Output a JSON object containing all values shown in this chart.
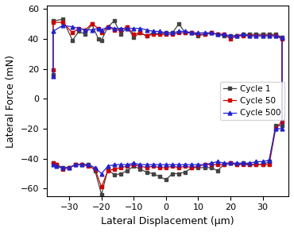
{
  "title": "",
  "xlabel": "Lateral Displacement (μm)",
  "ylabel": "Lateral Force (mN)",
  "xlim": [
    -37,
    38
  ],
  "ylim": [
    -65,
    62
  ],
  "xticks": [
    -30,
    -20,
    -10,
    0,
    10,
    20,
    30
  ],
  "yticks": [
    -60,
    -40,
    -20,
    0,
    20,
    40,
    60
  ],
  "legend_labels": [
    "Cycle 1",
    "Cycle 50",
    "Cycle 500"
  ],
  "legend_colors": [
    "#444444",
    "#cc0000",
    "#2222cc"
  ],
  "cycle1_x": [
    -35,
    -35,
    -32,
    -29,
    -27,
    -25,
    -23,
    -21,
    -20,
    -18,
    -16,
    -14,
    -12,
    -10,
    -8,
    -6,
    -4,
    -2,
    0,
    2,
    4,
    6,
    8,
    10,
    12,
    14,
    16,
    18,
    20,
    22,
    24,
    26,
    28,
    30,
    32,
    34,
    36,
    36,
    34,
    32,
    30,
    28,
    26,
    24,
    22,
    20,
    18,
    16,
    14,
    12,
    10,
    8,
    6,
    4,
    2,
    0,
    -2,
    -4,
    -6,
    -8,
    -10,
    -12,
    -14,
    -16,
    -18,
    -20,
    -22,
    -24,
    -26,
    -28,
    -30,
    -32,
    -34,
    -35
  ],
  "cycle1_y_top": [
    16,
    52,
    53,
    39,
    45,
    43,
    50,
    40,
    39,
    48,
    52,
    43,
    48,
    41,
    44,
    42,
    44,
    43,
    44,
    44,
    50,
    44,
    44,
    42,
    43,
    44,
    43,
    42,
    42,
    42,
    43,
    43,
    43,
    43,
    43,
    43,
    41,
    -18,
    -18,
    -42,
    -44,
    -44,
    -44,
    -43,
    -44,
    -43,
    -44,
    -48,
    -46,
    -46,
    -46,
    -46,
    -49,
    -50,
    -50,
    -54,
    -52,
    -50,
    -49,
    -47,
    -45,
    -48,
    -50,
    -51,
    -47,
    -64,
    -48,
    -44,
    -44,
    -44,
    -46,
    -46,
    -44,
    -43
  ],
  "cycle50_x": [
    -35,
    -35,
    -32,
    -29,
    -27,
    -25,
    -23,
    -21,
    -20,
    -18,
    -16,
    -14,
    -12,
    -10,
    -8,
    -6,
    -4,
    -2,
    0,
    2,
    4,
    6,
    8,
    10,
    12,
    14,
    16,
    18,
    20,
    22,
    24,
    26,
    28,
    30,
    32,
    34,
    36,
    36,
    34,
    32,
    30,
    28,
    26,
    24,
    22,
    20,
    18,
    16,
    14,
    12,
    10,
    8,
    6,
    4,
    2,
    0,
    -2,
    -4,
    -6,
    -8,
    -10,
    -12,
    -14,
    -16,
    -18,
    -20,
    -22,
    -24,
    -26,
    -28,
    -30,
    -32,
    -34,
    -35
  ],
  "cycle50_y_top": [
    19,
    51,
    51,
    44,
    47,
    46,
    50,
    47,
    44,
    48,
    46,
    46,
    48,
    43,
    44,
    42,
    43,
    43,
    43,
    43,
    44,
    44,
    44,
    43,
    43,
    44,
    43,
    43,
    40,
    42,
    42,
    42,
    42,
    42,
    42,
    42,
    40,
    -15,
    -20,
    -44,
    -44,
    -44,
    -44,
    -44,
    -44,
    -43,
    -44,
    -44,
    -44,
    -44,
    -45,
    -46,
    -45,
    -46,
    -45,
    -46,
    -46,
    -45,
    -46,
    -45,
    -44,
    -45,
    -46,
    -47,
    -48,
    -59,
    -47,
    -45,
    -44,
    -44,
    -46,
    -47,
    -44,
    -43
  ],
  "cycle500_x": [
    -35,
    -35,
    -32,
    -29,
    -27,
    -25,
    -23,
    -21,
    -20,
    -18,
    -16,
    -14,
    -12,
    -10,
    -8,
    -6,
    -4,
    -2,
    0,
    2,
    4,
    6,
    8,
    10,
    12,
    14,
    16,
    18,
    20,
    22,
    24,
    26,
    28,
    30,
    32,
    34,
    36,
    36,
    34,
    32,
    30,
    28,
    26,
    24,
    22,
    20,
    18,
    16,
    14,
    12,
    10,
    8,
    6,
    4,
    2,
    0,
    -2,
    -4,
    -6,
    -8,
    -10,
    -12,
    -14,
    -16,
    -18,
    -20,
    -22,
    -24,
    -26,
    -28,
    -30,
    -32,
    -34,
    -35
  ],
  "cycle500_y_top": [
    15,
    45,
    49,
    48,
    47,
    46,
    46,
    47,
    46,
    48,
    47,
    47,
    47,
    47,
    47,
    46,
    45,
    45,
    44,
    44,
    45,
    45,
    44,
    44,
    44,
    44,
    43,
    43,
    42,
    42,
    43,
    42,
    42,
    42,
    42,
    42,
    41,
    -20,
    -20,
    -41,
    -42,
    -42,
    -43,
    -43,
    -43,
    -43,
    -43,
    -42,
    -43,
    -44,
    -44,
    -44,
    -44,
    -44,
    -44,
    -44,
    -44,
    -44,
    -44,
    -44,
    -43,
    -44,
    -44,
    -44,
    -45,
    -50,
    -46,
    -44,
    -44,
    -44,
    -46,
    -46,
    -45,
    -44
  ]
}
